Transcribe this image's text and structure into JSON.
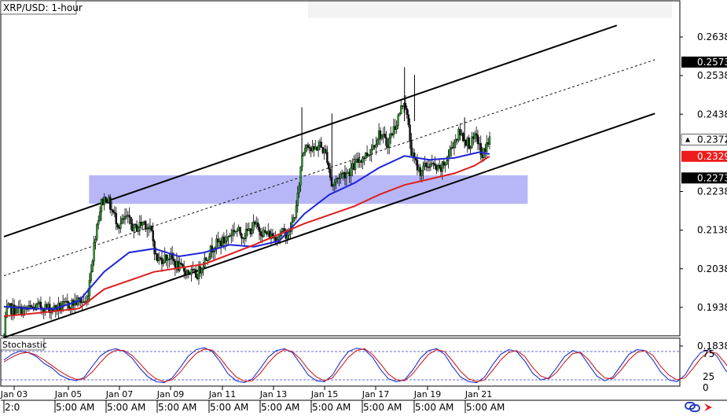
{
  "chart_data": [
    {
      "type": "candlestick",
      "title": "XRP/USD: 1-hour",
      "ylim": [
        0.179,
        0.269
      ],
      "price_ticks": [
        0.2638,
        0.2538,
        0.2438,
        0.2238,
        0.2138,
        0.2038,
        0.1938,
        0.1838
      ],
      "price_tick_labels": [
        "0.2638",
        "0.2538",
        "0.2438",
        "0.2238",
        "0.2138",
        "0.2038",
        "0.1938",
        "0.1838"
      ],
      "price_badges": [
        {
          "value": 0.2573,
          "label": "0.2573",
          "style": "black"
        },
        {
          "value": 0.2372,
          "label": "0.2372",
          "style": "white-arrow"
        },
        {
          "value": 0.2329,
          "label": "0.2329",
          "style": "red"
        },
        {
          "value": 0.2273,
          "label": "0.2273",
          "style": "black"
        }
      ],
      "x": [
        "Jan 03",
        "Jan 05",
        "Jan 07",
        "Jan 09",
        "Jan 11",
        "Jan 13",
        "Jan 15",
        "Jan 17",
        "Jan 19",
        "Jan 21"
      ],
      "x_secondary_labels": [
        "2:0",
        "5:00 AM",
        "5:00 AM",
        "5:00 AM",
        "5:00 AM",
        "5:00 AM",
        "5:00 AM",
        "5:00 AM",
        "5:00 AM",
        "5:00 AM"
      ],
      "close_path": [
        [
          0.0,
          0.1862
        ],
        [
          0.02,
          0.1875
        ],
        [
          0.04,
          0.1925
        ],
        [
          0.1,
          0.1935
        ],
        [
          0.2,
          0.1932
        ],
        [
          0.4,
          0.193
        ],
        [
          0.7,
          0.194
        ],
        [
          1.0,
          0.1935
        ],
        [
          1.3,
          0.1945
        ],
        [
          1.5,
          0.1955
        ],
        [
          1.65,
          0.195
        ],
        [
          1.75,
          0.205
        ],
        [
          1.85,
          0.215
        ],
        [
          1.95,
          0.221
        ],
        [
          2.05,
          0.2225
        ],
        [
          2.15,
          0.219
        ],
        [
          2.3,
          0.215
        ],
        [
          2.45,
          0.217
        ],
        [
          2.6,
          0.214
        ],
        [
          2.8,
          0.216
        ],
        [
          2.95,
          0.213
        ],
        [
          3.05,
          0.206
        ],
        [
          3.3,
          0.207
        ],
        [
          3.5,
          0.204
        ],
        [
          3.7,
          0.203
        ],
        [
          3.85,
          0.202
        ],
        [
          4.0,
          0.206
        ],
        [
          4.2,
          0.21
        ],
        [
          4.4,
          0.211
        ],
        [
          4.6,
          0.214
        ],
        [
          4.8,
          0.2125
        ],
        [
          5.0,
          0.215
        ],
        [
          5.2,
          0.213
        ],
        [
          5.4,
          0.212
        ],
        [
          5.55,
          0.213
        ],
        [
          5.7,
          0.213
        ],
        [
          5.85,
          0.22
        ],
        [
          5.95,
          0.233
        ],
        [
          6.05,
          0.237
        ],
        [
          6.15,
          0.234
        ],
        [
          6.3,
          0.236
        ],
        [
          6.45,
          0.233
        ],
        [
          6.55,
          0.225
        ],
        [
          6.7,
          0.228
        ],
        [
          6.9,
          0.229
        ],
        [
          7.1,
          0.232
        ],
        [
          7.3,
          0.234
        ],
        [
          7.5,
          0.239
        ],
        [
          7.65,
          0.236
        ],
        [
          7.85,
          0.242
        ],
        [
          8.0,
          0.248
        ],
        [
          8.05,
          0.243
        ],
        [
          8.15,
          0.233
        ],
        [
          8.3,
          0.229
        ],
        [
          8.5,
          0.231
        ],
        [
          8.7,
          0.229
        ],
        [
          8.85,
          0.232
        ],
        [
          8.95,
          0.236
        ],
        [
          9.1,
          0.239
        ],
        [
          9.3,
          0.236
        ],
        [
          9.45,
          0.238
        ],
        [
          9.55,
          0.232
        ],
        [
          9.6,
          0.235
        ],
        [
          9.7,
          0.2372
        ]
      ],
      "channel_lines": [
        {
          "name": "upper",
          "dashed": false,
          "x": [
            0.0,
            12.24
          ],
          "y": [
            0.2121,
            0.2668
          ]
        },
        {
          "name": "middle",
          "dashed": true,
          "x": [
            0.0,
            13.0
          ],
          "y": [
            0.202,
            0.2579
          ]
        },
        {
          "name": "lower",
          "dashed": false,
          "x": [
            0.0,
            13.0
          ],
          "y": [
            0.186,
            0.244
          ]
        }
      ],
      "zone": {
        "x": [
          1.7,
          10.46
        ],
        "y": [
          0.2206,
          0.228
        ]
      },
      "series": [
        {
          "color": "#1f24d8",
          "x": [
            0.0,
            0.5,
            1.0,
            1.5,
            2.0,
            2.5,
            3.0,
            3.5,
            4.0,
            4.5,
            5.0,
            5.5,
            6.0,
            6.5,
            7.0,
            7.5,
            8.0,
            8.5,
            9.0,
            9.5,
            9.7
          ],
          "values": [
            0.194,
            0.1935,
            0.1934,
            0.1955,
            0.203,
            0.208,
            0.209,
            0.207,
            0.208,
            0.21,
            0.2095,
            0.211,
            0.218,
            0.223,
            0.226,
            0.23,
            0.233,
            0.232,
            0.2325,
            0.234,
            0.2335
          ]
        },
        {
          "color": "#dd1f1f",
          "x": [
            0.0,
            0.8,
            1.5,
            2.0,
            3.0,
            3.5,
            4.0,
            5.0,
            6.0,
            7.0,
            7.5,
            8.0,
            8.5,
            9.0,
            9.4,
            9.7
          ],
          "values": [
            0.1915,
            0.1925,
            0.1935,
            0.1985,
            0.203,
            0.204,
            0.205,
            0.21,
            0.2155,
            0.22,
            0.223,
            0.2255,
            0.227,
            0.2285,
            0.2305,
            0.2329
          ]
        }
      ],
      "candle_count": 330,
      "random_seed": 7
    },
    {
      "type": "line",
      "title": "Stochastic",
      "ylim": [
        0,
        100
      ],
      "ticks": [
        75,
        25,
        0
      ],
      "tick_labels": [
        "75",
        "25",
        "0"
      ],
      "levels": [
        80,
        20
      ],
      "series": [
        {
          "color": "#2233cc",
          "x_step": 0.16,
          "values": [
            62,
            74,
            81,
            78,
            70,
            55,
            45,
            30,
            22,
            18,
            25,
            48,
            70,
            82,
            86,
            80,
            66,
            44,
            26,
            16,
            14,
            24,
            46,
            70,
            84,
            88,
            80,
            58,
            32,
            18,
            14,
            22,
            44,
            68,
            82,
            86,
            78,
            54,
            30,
            18,
            16,
            30,
            58,
            80,
            87,
            84,
            68,
            42,
            22,
            16,
            20,
            40,
            66,
            82,
            86,
            74,
            48,
            26,
            16,
            14,
            26,
            52,
            74,
            84,
            80,
            60,
            34,
            20,
            24,
            46,
            70,
            82,
            76,
            52,
            28,
            18,
            26,
            50,
            74,
            84,
            82,
            62,
            36,
            20,
            16,
            30,
            58,
            78,
            84,
            70,
            42,
            22,
            18,
            38,
            66,
            82,
            86,
            68,
            40,
            22,
            30,
            56,
            76,
            80,
            62,
            36,
            24,
            40,
            64,
            78,
            60,
            34,
            22,
            46,
            72,
            84,
            80,
            58,
            32,
            18,
            24,
            50,
            74,
            82,
            72,
            50,
            36,
            54,
            72,
            78,
            64,
            42,
            28,
            46,
            70,
            82,
            76,
            56,
            34,
            22,
            30,
            56,
            78,
            86,
            84,
            70,
            48,
            30,
            40,
            64,
            78,
            70,
            48,
            30,
            22,
            40,
            64,
            80,
            76
          ]
        },
        {
          "color": "#cc2222",
          "x_step": 0.16,
          "values": [
            58,
            68,
            76,
            78,
            73,
            62,
            50,
            38,
            28,
            21,
            22,
            36,
            56,
            74,
            83,
            82,
            72,
            54,
            35,
            22,
            16,
            20,
            36,
            58,
            76,
            85,
            83,
            66,
            44,
            26,
            17,
            18,
            34,
            56,
            74,
            84,
            80,
            64,
            42,
            26,
            18,
            24,
            46,
            68,
            82,
            86,
            74,
            54,
            32,
            20,
            18,
            32,
            54,
            74,
            84,
            80,
            60,
            38,
            22,
            16,
            20,
            40,
            62,
            78,
            82,
            70,
            46,
            28,
            22,
            36,
            58,
            76,
            78,
            62,
            40,
            24,
            22,
            40,
            62,
            78,
            82,
            72,
            48,
            30,
            20,
            24,
            44,
            66,
            80,
            76,
            56,
            34,
            22,
            30,
            52,
            74,
            84,
            76,
            54,
            32,
            26,
            44,
            66,
            78,
            70,
            48,
            30,
            32,
            52,
            70,
            68,
            46,
            28,
            36,
            60,
            78,
            82,
            68,
            46,
            26,
            22,
            38,
            62,
            78,
            76,
            60,
            44,
            46,
            62,
            74,
            70,
            54,
            36,
            38,
            58,
            76,
            78,
            66,
            46,
            30,
            26,
            42,
            66,
            80,
            84,
            76,
            60,
            40,
            36,
            52,
            70,
            74,
            60,
            40,
            26,
            32,
            52,
            72,
            78
          ]
        }
      ]
    }
  ],
  "toolbar": {
    "refresh_icon": "refresh-icon",
    "nav_icon": "red-arrow-icon"
  }
}
